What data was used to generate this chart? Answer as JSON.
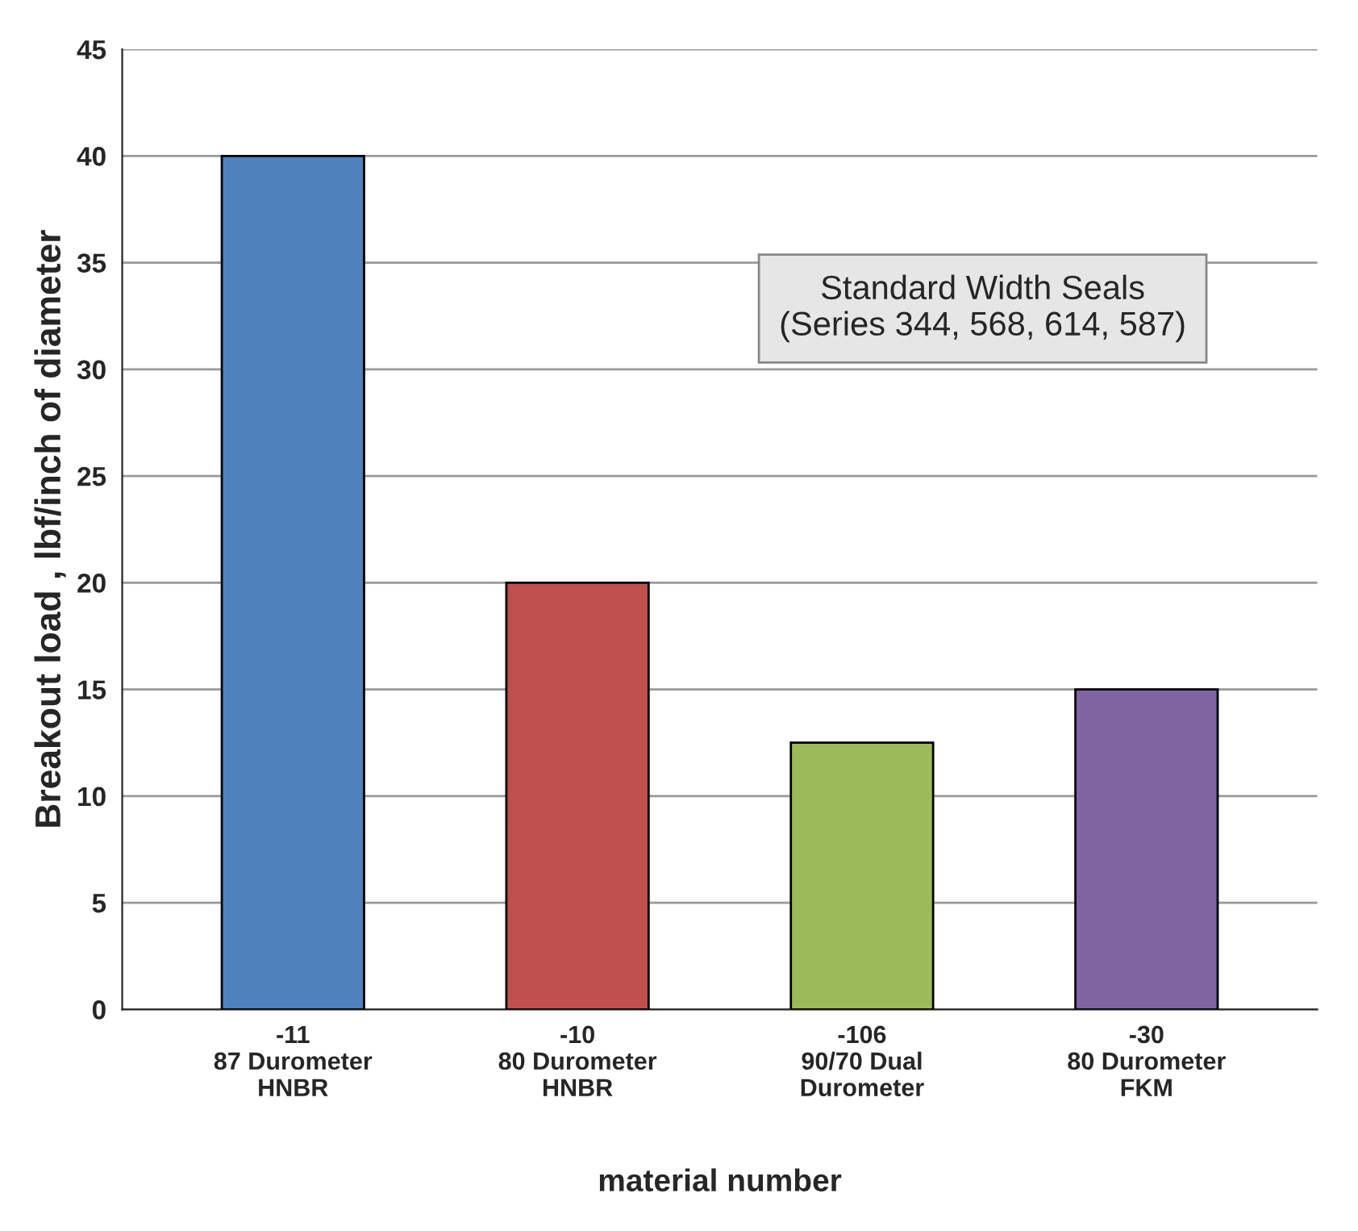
{
  "chart_data": {
    "type": "bar",
    "categories": [
      "-11\n87 Durometer\nHNBR",
      "-10\n80 Durometer\nHNBR",
      "-106\n90/70 Dual\nDurometer",
      "-30\n80 Durometer\nFKM"
    ],
    "values": [
      40,
      20,
      12.5,
      15
    ],
    "colors": [
      "#4f81bd",
      "#c0504d",
      "#9bbb59",
      "#8064a2"
    ],
    "xlabel": "material number",
    "ylabel": "Breakout load , lbf/inch of diameter",
    "annotations": [
      "Standard Width Seals\n(Series 344, 568, 614, 587)"
    ],
    "ylim": [
      0,
      45
    ],
    "yticks": [
      0,
      5,
      10,
      15,
      20,
      25,
      30,
      35,
      40,
      45
    ],
    "grid": "y"
  }
}
